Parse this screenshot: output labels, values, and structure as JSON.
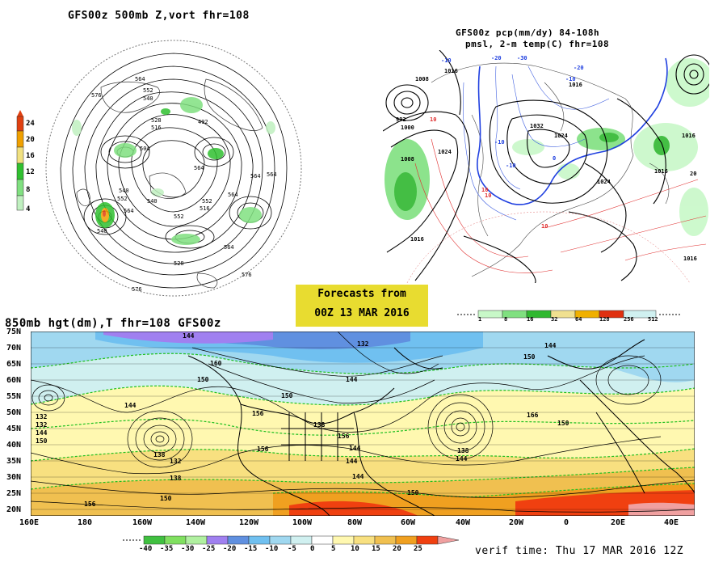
{
  "panel_top_left": {
    "title": "GFS00z  500mb Z,vort   fhr=108",
    "colorbar": {
      "ticks": [
        "24",
        "20",
        "16",
        "12",
        "8",
        "4"
      ],
      "colors": [
        "#e04010",
        "#f0a000",
        "#f0e080",
        "#30c030",
        "#80e080",
        "#c0f0c0"
      ]
    },
    "contour_labels": [
      "576",
      "564",
      "552",
      "540",
      "528",
      "516",
      "492",
      "504",
      "540",
      "564",
      "552",
      "564",
      "540",
      "564",
      "552",
      "516",
      "564",
      "540",
      "552",
      "528",
      "564",
      "576",
      "564",
      "576"
    ]
  },
  "panel_top_right": {
    "title_line1": "GFS00z pcp(mm/dy) 84-108h",
    "title_line2": "pmsl, 2-m temp(C)  fhr=108",
    "pressure_labels": [
      "1008",
      "1016",
      "1000",
      "992",
      "1008",
      "1024",
      "1032",
      "1024",
      "1016",
      "1016",
      "1016",
      "1016",
      "1024",
      "1016"
    ],
    "temp_labels_blue": [
      "-10",
      "-20",
      "-30",
      "-10",
      "-10",
      "-20",
      "-10",
      "0"
    ],
    "temp_labels_red": [
      "10",
      "10",
      "10",
      "10",
      "20"
    ],
    "colorbar": {
      "ticks": [
        "1",
        "8",
        "16",
        "32",
        "64",
        "128",
        "256",
        "512"
      ],
      "colors": [
        "#c8f8c8",
        "#80e080",
        "#30b830",
        "#f0e090",
        "#f0b000",
        "#f07000",
        "#e03010",
        "#d0f0f0"
      ]
    }
  },
  "forecast_box": {
    "line1": "Forecasts from",
    "line2": "00Z 13 MAR 2016"
  },
  "panel_bottom": {
    "title": "850mb hgt(dm),T  fhr=108 GFS00z",
    "lat_labels": [
      "75N",
      "70N",
      "65N",
      "60N",
      "55N",
      "50N",
      "45N",
      "40N",
      "35N",
      "30N",
      "25N",
      "20N"
    ],
    "lon_labels": [
      "160E",
      "180",
      "160W",
      "140W",
      "120W",
      "100W",
      "80W",
      "60W",
      "40W",
      "20W",
      "0",
      "20E",
      "40E"
    ],
    "height_labels": [
      "144",
      "132",
      "160",
      "144",
      "150",
      "156",
      "132",
      "144",
      "150",
      "156",
      "138",
      "132",
      "138",
      "144",
      "150",
      "156",
      "144",
      "156",
      "150",
      "144",
      "150",
      "166",
      "150",
      "144",
      "138",
      "144",
      "150",
      "132",
      "138",
      "144"
    ],
    "colorbar": {
      "ticks": [
        "-40",
        "-35",
        "-30",
        "-25",
        "-20",
        "-15",
        "-10",
        "-5",
        "0",
        "5",
        "10",
        "15",
        "20",
        "25"
      ],
      "colors": [
        "#40c040",
        "#80e060",
        "#b0f0a0",
        "#a080f0",
        "#6090e0",
        "#70c0f0",
        "#a0d8f0",
        "#d0f0f0",
        "#ffffff",
        "#fff8b0",
        "#f8e080",
        "#f0c050",
        "#f0a020",
        "#f04010",
        "#f0a0a0"
      ]
    }
  },
  "verif_time": "verif time: Thu 17 MAR 2016 12Z"
}
